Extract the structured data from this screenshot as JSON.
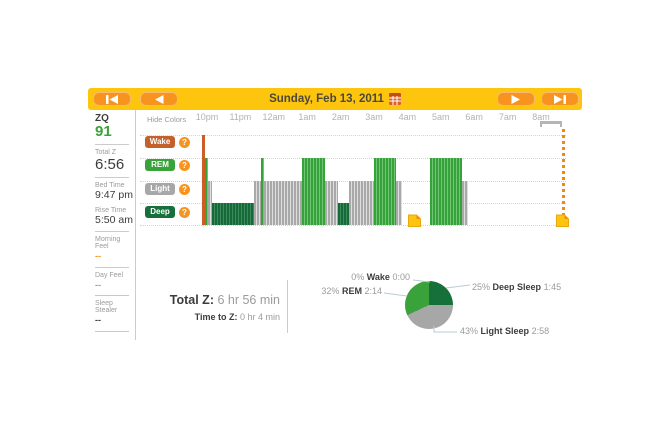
{
  "title_bar": {
    "date": "Sunday, Feb 13, 2011",
    "nav_icons": [
      "skip-to-first",
      "previous",
      "next",
      "skip-to-last"
    ],
    "calendar_icon": "calendar",
    "bar_color": "#fdc50e",
    "button_color": "#f79420"
  },
  "sidebar": {
    "zq": {
      "label": "ZQ",
      "value": "91"
    },
    "total_z": {
      "label": "Total Z",
      "value": "6:56"
    },
    "bed_time": {
      "label": "Bed Time",
      "value": "9:47 pm"
    },
    "rise_time": {
      "label": "Rise Time",
      "value": "5:50 am"
    },
    "morning_feel": {
      "label": "Morning Feel",
      "value": "--"
    },
    "day_feel": {
      "label": "Day Feel",
      "value": "--"
    },
    "sleep_stealer": {
      "label": "Sleep Stealer",
      "value": "--"
    }
  },
  "legend": {
    "hide_colors": "Hide Colors",
    "help_icon": "?",
    "items": [
      {
        "label": "Wake",
        "color": "#c4602c"
      },
      {
        "label": "REM",
        "color": "#3aa23a"
      },
      {
        "label": "Light",
        "color": "#a7a7a7"
      },
      {
        "label": "Deep",
        "color": "#15703a"
      }
    ]
  },
  "summary": {
    "total_z_label": "Total Z:",
    "total_z_value": "6 hr 56 min",
    "time_to_z_label": "Time to Z:",
    "time_to_z_value": "0 hr 4 min"
  },
  "chart_data": [
    {
      "type": "bar",
      "subtype": "sleep-hypnogram",
      "title": "Sleep stages through the night",
      "x_ticks": [
        "10pm",
        "11pm",
        "12am",
        "1am",
        "2am",
        "3am",
        "4am",
        "5am",
        "6am",
        "7am",
        "8am"
      ],
      "stage_order_tall_to_short": [
        "wake",
        "rem",
        "light",
        "deep"
      ],
      "bed_time": "9:47 pm",
      "rise_time": "5:50 am",
      "segments": [
        {
          "stage": "wake",
          "start": -0.15,
          "end": -0.06
        },
        {
          "stage": "rem",
          "start": -0.06,
          "end": 0.04
        },
        {
          "stage": "light",
          "start": 0.04,
          "end": 0.14
        },
        {
          "stage": "deep",
          "start": 0.14,
          "end": 1.42
        },
        {
          "stage": "light",
          "start": 1.42,
          "end": 1.62
        },
        {
          "stage": "rem",
          "start": 1.62,
          "end": 1.72
        },
        {
          "stage": "light",
          "start": 1.72,
          "end": 2.85
        },
        {
          "stage": "rem",
          "start": 2.85,
          "end": 3.53
        },
        {
          "stage": "light",
          "start": 3.53,
          "end": 3.93
        },
        {
          "stage": "deep",
          "start": 3.93,
          "end": 4.25
        },
        {
          "stage": "light",
          "start": 4.25,
          "end": 5.0
        },
        {
          "stage": "rem",
          "start": 5.0,
          "end": 5.67
        },
        {
          "stage": "light",
          "start": 5.67,
          "end": 5.85
        },
        {
          "stage": "rem",
          "start": 6.67,
          "end": 7.63
        },
        {
          "stage": "light",
          "start": 7.63,
          "end": 7.83
        }
      ],
      "segment_unit": "hours after 10pm",
      "annotations": [
        {
          "icon": "sleep-note",
          "at_hour": 6.02
        },
        {
          "icon": "sleep-note",
          "at_hour": 10.45
        }
      ],
      "grid": "dotted horizontal line per stage level"
    },
    {
      "type": "pie",
      "title": "Sleep stage totals",
      "slices": [
        {
          "name": "Wake",
          "pct_label": "0%",
          "value_pct": 0,
          "time": "0:00",
          "color": "#c4602c"
        },
        {
          "name": "REM",
          "pct_label": "32%",
          "value_pct": 32,
          "time": "2:14",
          "color": "#3aa23a"
        },
        {
          "name": "Deep Sleep",
          "pct_label": "25%",
          "value_pct": 25,
          "time": "1:45",
          "color": "#15703a"
        },
        {
          "name": "Light Sleep",
          "pct_label": "43%",
          "value_pct": 43,
          "time": "2:58",
          "color": "#a7a7a7"
        }
      ],
      "clockwise_from_top": [
        "Deep Sleep",
        "Light Sleep",
        "REM",
        "Wake"
      ],
      "legend_position": "callout labels with leader lines"
    }
  ]
}
